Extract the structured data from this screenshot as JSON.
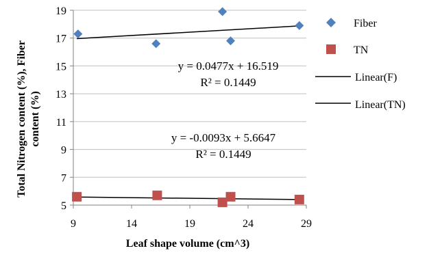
{
  "chart_data": {
    "type": "scatter",
    "xlabel": "Leaf shape volume (cm^3)",
    "ylabel_lines": [
      "Total Nitrogen content (%), Fiber",
      "content (%)"
    ],
    "xlim": [
      9,
      29
    ],
    "ylim": [
      5,
      19
    ],
    "xticks": [
      9,
      14,
      19,
      24,
      29
    ],
    "yticks": [
      5,
      7,
      9,
      11,
      13,
      15,
      17,
      19
    ],
    "xtick_labels": [
      "9",
      "14",
      "19",
      "24",
      "29"
    ],
    "ytick_labels": [
      "5",
      "7",
      "9",
      "11",
      "13",
      "15",
      "17",
      "19"
    ],
    "grid": "horizontal",
    "series": [
      {
        "name": "Fiber",
        "marker": "diamond",
        "color": "#4f81bd",
        "points": [
          [
            9.4,
            17.3
          ],
          [
            16.1,
            16.6
          ],
          [
            21.8,
            18.9
          ],
          [
            22.5,
            16.8
          ],
          [
            28.4,
            17.9
          ]
        ]
      },
      {
        "name": "TN",
        "marker": "square",
        "color": "#c0504d",
        "points": [
          [
            9.3,
            5.6
          ],
          [
            16.2,
            5.7
          ],
          [
            21.8,
            5.2
          ],
          [
            22.5,
            5.6
          ],
          [
            28.4,
            5.4
          ]
        ]
      }
    ],
    "trendlines": [
      {
        "name": "Linear(F)",
        "color": "#000000",
        "slope": 0.0477,
        "intercept": 16.519,
        "x_range": [
          9.3,
          28.4
        ],
        "equation": "y = 0.0477x + 16.519",
        "r2": "R² = 0.1449"
      },
      {
        "name": "Linear(TN)",
        "color": "#000000",
        "slope": -0.0093,
        "intercept": 5.6647,
        "x_range": [
          9.3,
          28.4
        ],
        "equation": "y = -0.0093x + 5.6647",
        "r2": "R² = 0.1449"
      }
    ],
    "legend": {
      "position": "right",
      "entries": [
        "Fiber",
        "TN",
        "Linear(F)",
        "Linear(TN)"
      ]
    }
  }
}
